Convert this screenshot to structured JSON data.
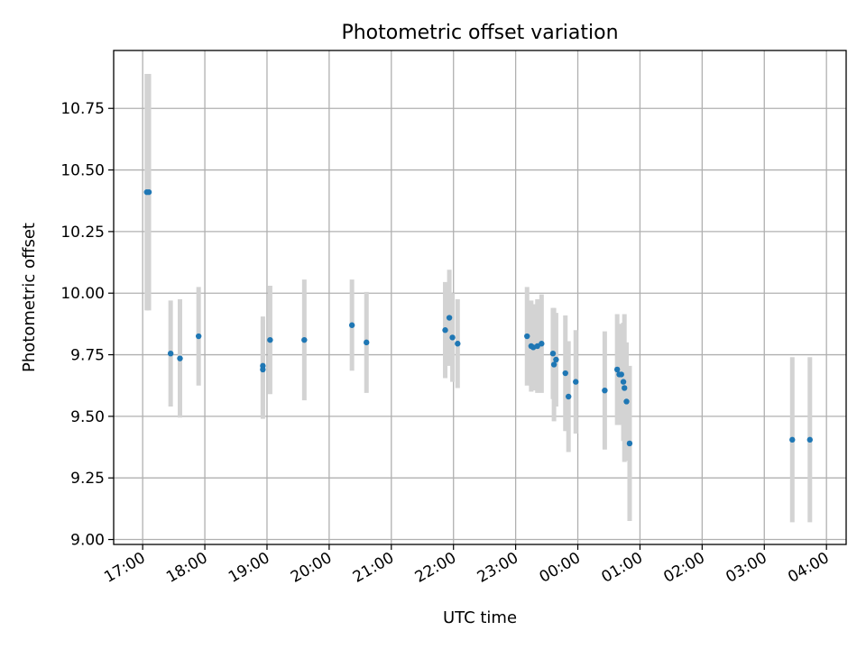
{
  "chart_data": {
    "type": "scatter",
    "title": "Photometric offset variation",
    "xlabel": "UTC time",
    "ylabel": "Photometric offset",
    "xlim": [
      "16:32",
      "04:19"
    ],
    "ylim": [
      8.98,
      10.985
    ],
    "grid": true,
    "x_ticks": [
      "17:00",
      "18:00",
      "19:00",
      "20:00",
      "21:00",
      "22:00",
      "23:00",
      "00:00",
      "01:00",
      "02:00",
      "03:00",
      "04:00"
    ],
    "y_ticks": [
      "9.00",
      "9.25",
      "9.50",
      "9.75",
      "10.00",
      "10.25",
      "10.50",
      "10.75"
    ],
    "colors": {
      "marker": "#1f77b4",
      "errorbar": "#d3d3d3",
      "grid": "#b0b0b0"
    },
    "points": [
      {
        "t": "17:04",
        "y": 10.41,
        "err": 0.48
      },
      {
        "t": "17:06",
        "y": 10.41,
        "err": 0.48
      },
      {
        "t": "17:27",
        "y": 9.755,
        "err": 0.215
      },
      {
        "t": "17:36",
        "y": 9.735,
        "err": 0.24
      },
      {
        "t": "17:54",
        "y": 9.825,
        "err": 0.2
      },
      {
        "t": "18:56",
        "y": 9.705,
        "err": 0.2
      },
      {
        "t": "18:56",
        "y": 9.69,
        "err": 0.2
      },
      {
        "t": "19:03",
        "y": 9.81,
        "err": 0.22
      },
      {
        "t": "19:36",
        "y": 9.81,
        "err": 0.245
      },
      {
        "t": "20:22",
        "y": 9.87,
        "err": 0.185
      },
      {
        "t": "20:36",
        "y": 9.8,
        "err": 0.205
      },
      {
        "t": "21:52",
        "y": 9.85,
        "err": 0.195
      },
      {
        "t": "21:56",
        "y": 9.9,
        "err": 0.195
      },
      {
        "t": "21:59",
        "y": 9.82,
        "err": 0.18
      },
      {
        "t": "22:04",
        "y": 9.795,
        "err": 0.18
      },
      {
        "t": "23:11",
        "y": 9.825,
        "err": 0.2
      },
      {
        "t": "23:15",
        "y": 9.785,
        "err": 0.185
      },
      {
        "t": "23:17",
        "y": 9.78,
        "err": 0.175
      },
      {
        "t": "23:21",
        "y": 9.785,
        "err": 0.19
      },
      {
        "t": "23:25",
        "y": 9.795,
        "err": 0.2
      },
      {
        "t": "23:36",
        "y": 9.755,
        "err": 0.185
      },
      {
        "t": "23:37",
        "y": 9.71,
        "err": 0.23
      },
      {
        "t": "23:39",
        "y": 9.73,
        "err": 0.19
      },
      {
        "t": "23:48",
        "y": 9.675,
        "err": 0.235
      },
      {
        "t": "23:51",
        "y": 9.58,
        "err": 0.225
      },
      {
        "t": "23:58",
        "y": 9.64,
        "err": 0.21
      },
      {
        "t": "00:26",
        "y": 9.605,
        "err": 0.24
      },
      {
        "t": "00:38",
        "y": 9.69,
        "err": 0.225
      },
      {
        "t": "00:40",
        "y": 9.67,
        "err": 0.205
      },
      {
        "t": "00:42",
        "y": 9.67,
        "err": 0.205
      },
      {
        "t": "00:44",
        "y": 9.64,
        "err": 0.24
      },
      {
        "t": "00:45",
        "y": 9.615,
        "err": 0.3
      },
      {
        "t": "00:47",
        "y": 9.56,
        "err": 0.24
      },
      {
        "t": "00:50",
        "y": 9.39,
        "err": 0.315
      },
      {
        "t": "03:27",
        "y": 9.405,
        "err": 0.335
      },
      {
        "t": "03:44",
        "y": 9.405,
        "err": 0.335
      }
    ]
  }
}
